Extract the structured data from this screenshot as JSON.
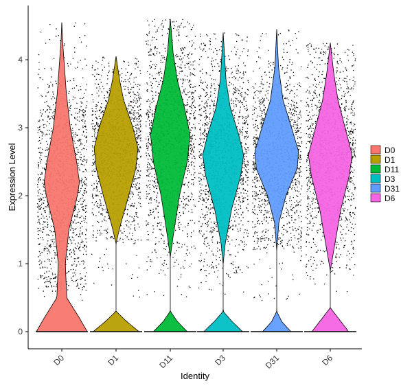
{
  "chart_data": {
    "type": "violin",
    "xlabel": "Identity",
    "ylabel": "Expression Level",
    "ylim": [
      -0.25,
      4.8
    ],
    "yticks": [
      0,
      1,
      2,
      3,
      4
    ],
    "categories": [
      "D0",
      "D1",
      "D11",
      "D3",
      "D31",
      "D6"
    ],
    "colors": [
      "#F8766D",
      "#B79F00",
      "#00BA38",
      "#00BFC4",
      "#619CFF",
      "#F564E3"
    ],
    "distributions": [
      {
        "name": "D0",
        "max": 4.55,
        "upper_bulk": [
          0.6,
          4.3
        ],
        "mode": 2.2,
        "zero_fraction_hint": "wide",
        "density": [
          [
            0,
            0.72
          ],
          [
            0.2,
            0.5
          ],
          [
            0.5,
            0.14
          ],
          [
            1.0,
            0.1
          ],
          [
            1.5,
            0.2
          ],
          [
            2.0,
            0.44
          ],
          [
            2.2,
            0.5
          ],
          [
            2.5,
            0.42
          ],
          [
            3.0,
            0.24
          ],
          [
            3.5,
            0.13
          ],
          [
            4.0,
            0.06
          ],
          [
            4.3,
            0.02
          ],
          [
            4.55,
            0.0
          ]
        ]
      },
      {
        "name": "D1",
        "max": 4.05,
        "upper_bulk": [
          1.3,
          3.9
        ],
        "mode": 2.7,
        "zero_fraction_hint": "narrow",
        "density": [
          [
            0,
            0.65
          ],
          [
            0.15,
            0.3
          ],
          [
            0.3,
            0.0
          ],
          [
            1.3,
            0.0
          ],
          [
            1.6,
            0.14
          ],
          [
            2.0,
            0.36
          ],
          [
            2.4,
            0.56
          ],
          [
            2.7,
            0.62
          ],
          [
            3.0,
            0.48
          ],
          [
            3.4,
            0.22
          ],
          [
            3.7,
            0.1
          ],
          [
            4.05,
            0.0
          ]
        ]
      },
      {
        "name": "D11",
        "max": 4.6,
        "upper_bulk": [
          0.9,
          4.4
        ],
        "mode": 2.9,
        "zero_fraction_hint": "narrow",
        "density": [
          [
            0,
            0.48
          ],
          [
            0.15,
            0.2
          ],
          [
            0.3,
            0.0
          ],
          [
            1.1,
            0.0
          ],
          [
            1.4,
            0.08
          ],
          [
            2.0,
            0.26
          ],
          [
            2.5,
            0.48
          ],
          [
            2.9,
            0.56
          ],
          [
            3.3,
            0.4
          ],
          [
            3.7,
            0.2
          ],
          [
            4.1,
            0.08
          ],
          [
            4.6,
            0.0
          ]
        ]
      },
      {
        "name": "D3",
        "max": 4.4,
        "upper_bulk": [
          0.8,
          4.3
        ],
        "mode": 2.6,
        "zero_fraction_hint": "narrow",
        "density": [
          [
            0,
            0.55
          ],
          [
            0.15,
            0.25
          ],
          [
            0.3,
            0.0
          ],
          [
            1.0,
            0.0
          ],
          [
            1.3,
            0.06
          ],
          [
            1.8,
            0.24
          ],
          [
            2.3,
            0.5
          ],
          [
            2.6,
            0.58
          ],
          [
            2.9,
            0.44
          ],
          [
            3.3,
            0.2
          ],
          [
            3.7,
            0.08
          ],
          [
            4.4,
            0.0
          ]
        ]
      },
      {
        "name": "D31",
        "max": 4.45,
        "upper_bulk": [
          1.2,
          4.2
        ],
        "mode": 2.6,
        "zero_fraction_hint": "narrow",
        "density": [
          [
            0,
            0.4
          ],
          [
            0.15,
            0.14
          ],
          [
            0.3,
            0.0
          ],
          [
            1.2,
            0.0
          ],
          [
            1.6,
            0.06
          ],
          [
            2.0,
            0.26
          ],
          [
            2.4,
            0.58
          ],
          [
            2.65,
            0.62
          ],
          [
            3.0,
            0.42
          ],
          [
            3.4,
            0.18
          ],
          [
            3.9,
            0.05
          ],
          [
            4.45,
            0.0
          ]
        ]
      },
      {
        "name": "D6",
        "max": 4.25,
        "upper_bulk": [
          0.8,
          4.1
        ],
        "mode": 2.6,
        "zero_fraction_hint": "narrow",
        "density": [
          [
            0,
            0.52
          ],
          [
            0.15,
            0.3
          ],
          [
            0.35,
            0.0
          ],
          [
            0.9,
            0.0
          ],
          [
            1.2,
            0.1
          ],
          [
            1.8,
            0.3
          ],
          [
            2.3,
            0.54
          ],
          [
            2.6,
            0.62
          ],
          [
            3.0,
            0.42
          ],
          [
            3.4,
            0.22
          ],
          [
            3.8,
            0.1
          ],
          [
            4.25,
            0.0
          ]
        ]
      }
    ],
    "legend": {
      "position": "right",
      "entries": [
        "D0",
        "D1",
        "D11",
        "D3",
        "D31",
        "D6"
      ]
    },
    "grid": false
  }
}
